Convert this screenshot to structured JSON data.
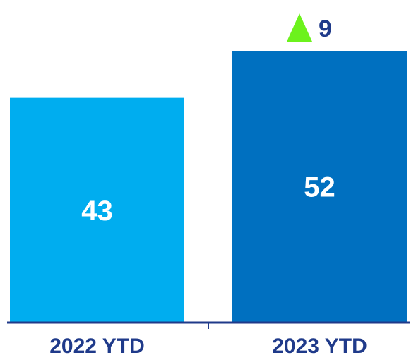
{
  "chart_data": {
    "type": "bar",
    "categories": [
      "2022 YTD",
      "2023 YTD"
    ],
    "values": [
      43,
      52
    ],
    "title": "",
    "xlabel": "",
    "ylabel": "",
    "ylim": [
      0,
      52
    ],
    "bar_colors": [
      "#00adef",
      "#0070c0"
    ],
    "data_labels": [
      "43",
      "52"
    ],
    "delta": {
      "value": "9",
      "direction": "up",
      "color": "#6cf21c"
    },
    "text_color": "#1f3a8a",
    "axis_color": "#1f3a8a",
    "grid": false
  }
}
